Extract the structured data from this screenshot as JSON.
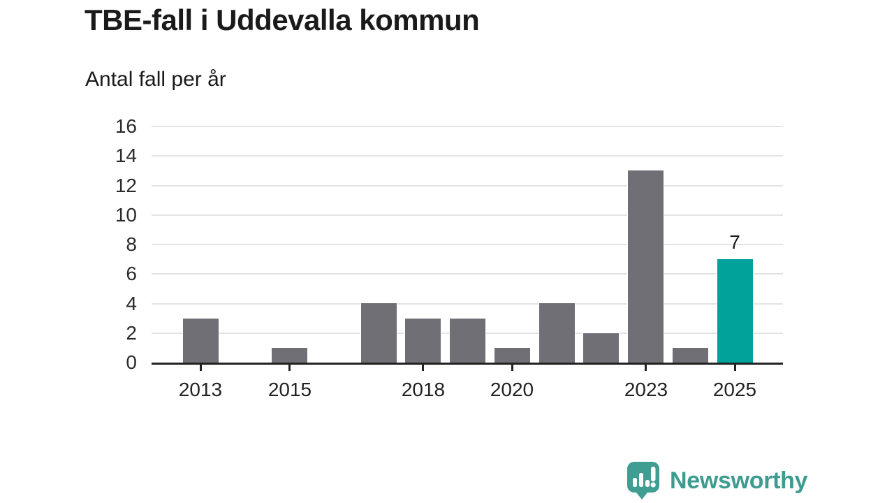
{
  "header": {
    "title": "TBE-fall i Uddevalla kommun",
    "subtitle": "Antal fall per år"
  },
  "chart_data": {
    "type": "bar",
    "title": "TBE-fall i Uddevalla kommun",
    "subtitle": "Antal fall per år",
    "categories": [
      "2013",
      "2014",
      "2015",
      "2016",
      "2017",
      "2018",
      "2019",
      "2020",
      "2021",
      "2022",
      "2023",
      "2024",
      "2025"
    ],
    "values": [
      3,
      0,
      1,
      0,
      4,
      3,
      3,
      1,
      4,
      2,
      13,
      1,
      7
    ],
    "highlight_index": 12,
    "highlight_value_label": "7",
    "x_tick_labels": [
      "2013",
      "2015",
      "2018",
      "2020",
      "2023",
      "2025"
    ],
    "y_ticks": [
      0,
      2,
      4,
      6,
      8,
      10,
      12,
      14,
      16
    ],
    "ylim": [
      0,
      16
    ],
    "xlabel": "",
    "ylabel": "Antal fall per år",
    "grid": "horizontal",
    "legend": "none",
    "bar_color": "#716f76",
    "highlight_color": "#00a29a",
    "axis_color": "#222222",
    "gridline_color": "#e3e3e3"
  },
  "branding": {
    "name": "Newsworthy",
    "color": "#3d9b8f",
    "icon": "newsworthy-speech-bubble-chart-icon",
    "icon_color": "#3f9d92"
  }
}
